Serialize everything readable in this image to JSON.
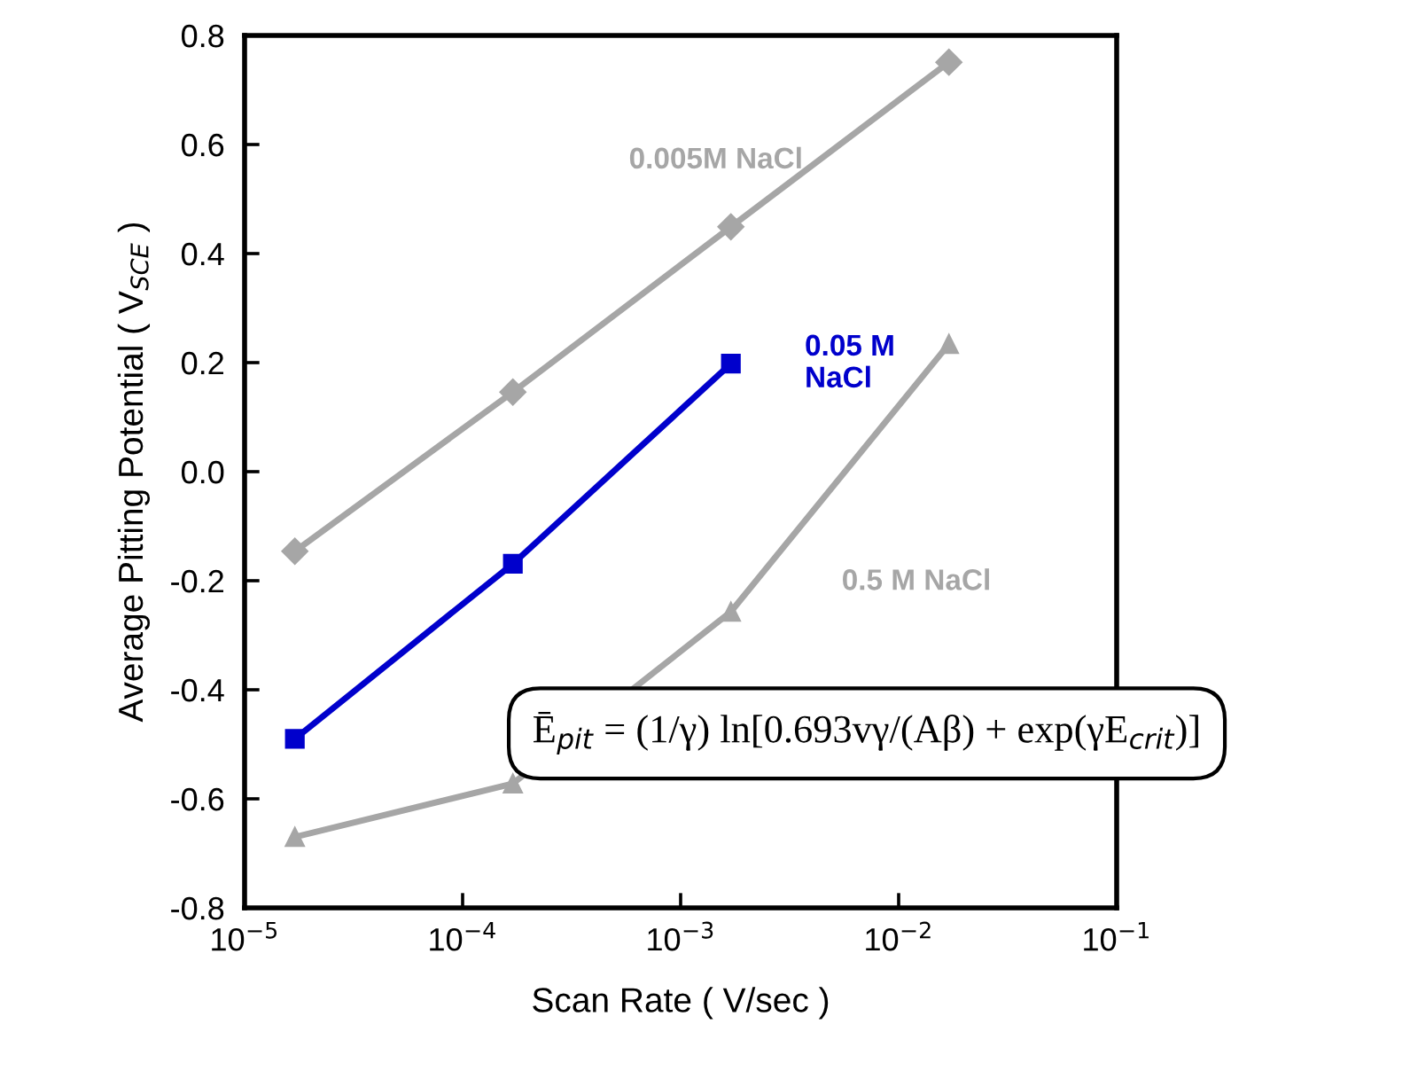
{
  "chart_data": {
    "type": "line",
    "xlabel": "Scan Rate ( V/sec )",
    "ylabel": "Average Pitting Potential ( V$_{SCE}$ )",
    "log": "x",
    "xlim": [
      1e-05,
      0.1
    ],
    "ylim": [
      -0.8,
      0.8
    ],
    "xticks": [
      {
        "value": 1e-05,
        "label": "10$^{−5}$"
      },
      {
        "value": 0.0001,
        "label": "10$^{−4}$"
      },
      {
        "value": 0.001,
        "label": "10$^{−3}$"
      },
      {
        "value": 0.01,
        "label": "10$^{−2}$"
      },
      {
        "value": 0.1,
        "label": "10$^{−1}$"
      }
    ],
    "yticks": [
      {
        "value": -0.8,
        "label": "-0.8"
      },
      {
        "value": -0.6,
        "label": "-0.6"
      },
      {
        "value": -0.4,
        "label": "-0.4"
      },
      {
        "value": -0.2,
        "label": "-0.2"
      },
      {
        "value": 0,
        "label": "0.0"
      },
      {
        "value": 0.2,
        "label": "0.2"
      },
      {
        "value": 0.4,
        "label": "0.4"
      },
      {
        "value": 0.6,
        "label": "0.6"
      },
      {
        "value": 0.8,
        "label": "0.8"
      }
    ],
    "grid": false,
    "legend": false,
    "series": [
      {
        "name": "0.005M NaCl",
        "color": "#a6a6a6",
        "marker": "diamond",
        "x": [
          1.7e-05,
          0.00017,
          0.0017,
          0.017
        ],
        "values": [
          -0.146,
          0.146,
          0.449,
          0.751
        ]
      },
      {
        "name": "0.05 M\nNaCl",
        "color": "#0000cc",
        "marker": "square",
        "x": [
          1.7e-05,
          0.00017,
          0.0017
        ],
        "values": [
          -0.49,
          -0.169,
          0.198
        ]
      },
      {
        "name": "0.5 M NaCl",
        "color": "#a6a6a6",
        "marker": "triangle",
        "x": [
          1.7e-05,
          0.00017,
          0.0017,
          0.017
        ],
        "values": [
          -0.67,
          -0.572,
          -0.257,
          0.234
        ]
      }
    ],
    "annotations": [
      "Ē$_{pit}$ = (1/γ) ln[0.693vγ/(Aβ) + exp(γE$_{crit}$)]"
    ]
  }
}
